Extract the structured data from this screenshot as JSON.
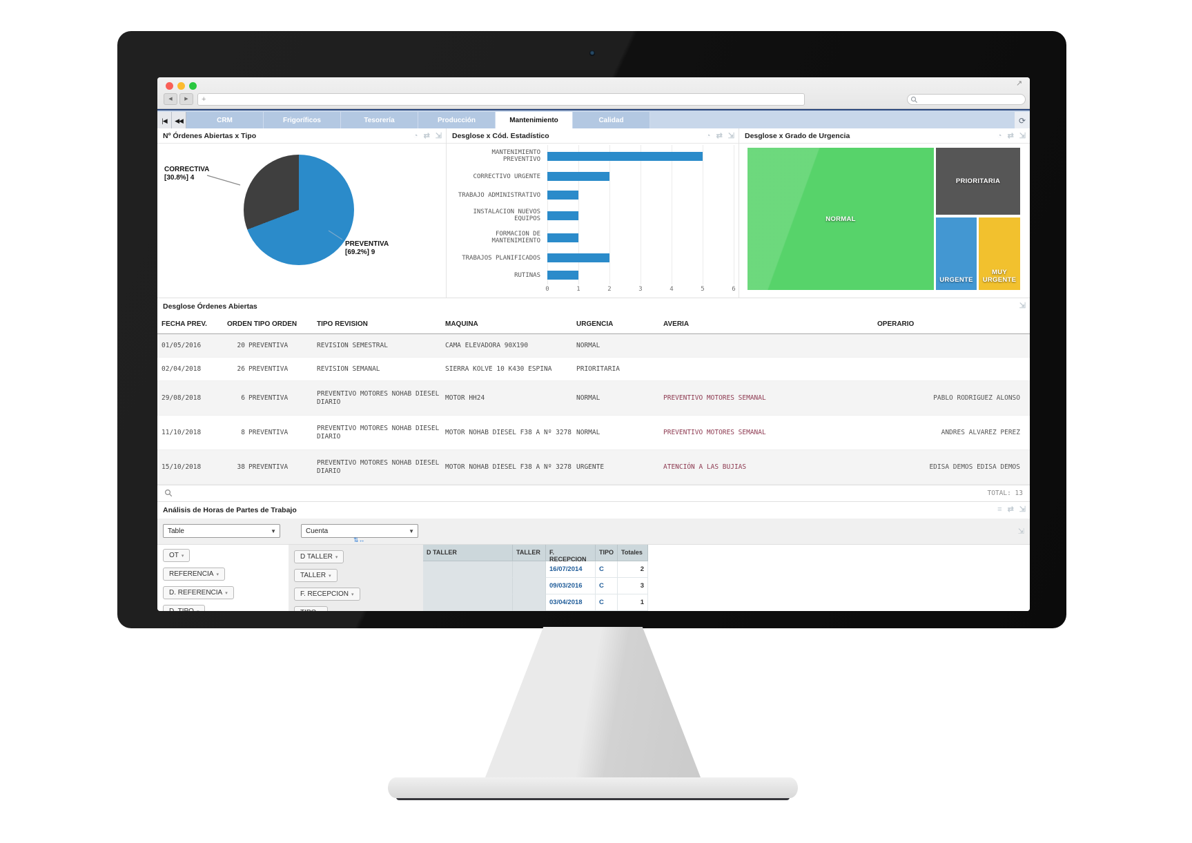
{
  "ui_colors": {
    "accent_blue": "#2b8bca",
    "tab_bar": "#c8d7ea",
    "tab_active_text": "#111111"
  },
  "browser": {
    "traffic_lights": [
      "#f95f57",
      "#fcbb2f",
      "#29c73f"
    ],
    "back_icon": "◀",
    "forward_icon": "▶",
    "url_plus_icon": "+",
    "url_value": "",
    "search_placeholder": "",
    "window_expand_icon": "↗"
  },
  "tabbar": {
    "first_icon": "|◀",
    "prev_icon": "◀◀",
    "refresh_icon": "⟳",
    "tabs": [
      {
        "label": "CRM",
        "active": false
      },
      {
        "label": "Frigoríficos",
        "active": false
      },
      {
        "label": "Tesorería",
        "active": false
      },
      {
        "label": "Producción",
        "active": false
      },
      {
        "label": "Mantenimiento",
        "active": true
      },
      {
        "label": "Calidad",
        "active": false
      }
    ]
  },
  "panel_icons": {
    "chart_mode": "◔",
    "shuffle": "⇄",
    "expand": "⇲",
    "list": "≡"
  },
  "panels": {
    "pie_title": "Nº Órdenes Abiertas x Tipo",
    "bar_title": "Desglose x Cód. Estadístico",
    "treemap_title": "Desglose x Grado de Urgencia",
    "table_title": "Desglose Órdenes Abiertas",
    "pivot_title": "Análisis de Horas de Partes de Trabajo"
  },
  "chart_data": [
    {
      "type": "pie",
      "title": "Nº Órdenes Abiertas x Tipo",
      "labels": [
        "PREVENTIVA",
        "CORRECTIVA"
      ],
      "values": [
        9,
        4
      ],
      "percents": [
        69.2,
        30.8
      ],
      "colors": [
        "#2b8bca",
        "#3f3f3f"
      ],
      "callouts": [
        {
          "name": "CORRECTIVA",
          "detail": "[30.8%] 4"
        },
        {
          "name": "PREVENTIVA",
          "detail": "[69.2%] 9"
        }
      ]
    },
    {
      "type": "bar",
      "orientation": "horizontal",
      "title": "Desglose x Cód. Estadístico",
      "categories": [
        "MANTENIMIENTO\nPREVENTIVO",
        "CORRECTIVO URGENTE",
        "TRABAJO ADMINISTRATIVO",
        "INSTALACION NUEVOS\nEQUIPOS",
        "FORMACION DE\nMANTENIMIENTO",
        "TRABAJOS PLANIFICADOS",
        "RUTINAS"
      ],
      "values": [
        5,
        2,
        1,
        1,
        1,
        2,
        1
      ],
      "xlim": [
        0,
        6
      ],
      "ticks": [
        0,
        1,
        2,
        3,
        4,
        5,
        6
      ],
      "bar_color": "#2b8bca",
      "grid": true
    },
    {
      "type": "treemap",
      "title": "Desglose x Grado de Urgencia",
      "nodes": [
        {
          "label": "NORMAL",
          "color": "#57d36a"
        },
        {
          "label": "PRIORITARIA",
          "color": "#565656"
        },
        {
          "label": "URGENTE",
          "color": "#4397d2"
        },
        {
          "label": "MUY URGENTE",
          "color": "#f2c12e"
        }
      ]
    }
  ],
  "orders_table": {
    "columns": [
      "FECHA PREV.",
      "ORDEN TIPO ORDEN",
      "TIPO REVISION",
      "MAQUINA",
      "URGENCIA",
      "AVERIA",
      "OPERARIO"
    ],
    "rows": [
      {
        "fecha": "01/05/2016",
        "orden": "20",
        "tipo": "PREVENTIVA",
        "revision": "REVISION SEMESTRAL",
        "maquina": "CAMA ELEVADORA 90X190",
        "urgencia": "NORMAL",
        "averia": "",
        "operario": ""
      },
      {
        "fecha": "02/04/2018",
        "orden": "26",
        "tipo": "PREVENTIVA",
        "revision": "REVISION SEMANAL",
        "maquina": "SIERRA KOLVE 10 K430 ESPINA",
        "urgencia": "PRIORITARIA",
        "averia": "",
        "operario": ""
      },
      {
        "fecha": "29/08/2018",
        "orden": "6",
        "tipo": "PREVENTIVA",
        "revision": "PREVENTIVO MOTORES NOHAB DIESEL DIARIO",
        "maquina": "MOTOR HH24",
        "urgencia": "NORMAL",
        "averia": "PREVENTIVO MOTORES SEMANAL",
        "operario": "PABLO RODRIGUEZ ALONSO"
      },
      {
        "fecha": "11/10/2018",
        "orden": "8",
        "tipo": "PREVENTIVA",
        "revision": "PREVENTIVO MOTORES NOHAB DIESEL DIARIO",
        "maquina": "MOTOR NOHAB DIESEL F38 A Nº 3278",
        "urgencia": "NORMAL",
        "averia": "PREVENTIVO MOTORES SEMANAL",
        "operario": "ANDRES ALVAREZ PEREZ"
      },
      {
        "fecha": "15/10/2018",
        "orden": "38",
        "tipo": "PREVENTIVA",
        "revision": "PREVENTIVO MOTORES NOHAB DIESEL DIARIO",
        "maquina": "MOTOR NOHAB DIESEL F38 A Nº 3278",
        "urgencia": "URGENTE",
        "averia": "ATENCIÓN A LAS BUJIAS",
        "operario": "EDISA DEMOS EDISA DEMOS"
      }
    ],
    "total_label": "TOTAL: 13"
  },
  "pivot": {
    "view_select": "Table",
    "agg_select": "Cuenta",
    "move_icon": "⇅↔",
    "row_fields": [
      "OT",
      "REFERENCIA",
      "D. REFERENCIA",
      "D. TIPO"
    ],
    "col_fields": [
      "D TALLER",
      "TALLER",
      "F. RECEPCION",
      "TIPO"
    ],
    "grid": {
      "columns": [
        "D TALLER",
        "TALLER",
        "F. RECEPCION",
        "TIPO",
        "Totales"
      ],
      "rows": [
        {
          "d_taller": "",
          "taller": "",
          "f_recepcion": "16/07/2014",
          "tipo": "C",
          "totales": "2"
        },
        {
          "d_taller": "",
          "taller": "",
          "f_recepcion": "09/03/2016",
          "tipo": "C",
          "totales": "3"
        },
        {
          "d_taller": "",
          "taller": "",
          "f_recepcion": "03/04/2018",
          "tipo": "C",
          "totales": "1"
        }
      ]
    }
  }
}
